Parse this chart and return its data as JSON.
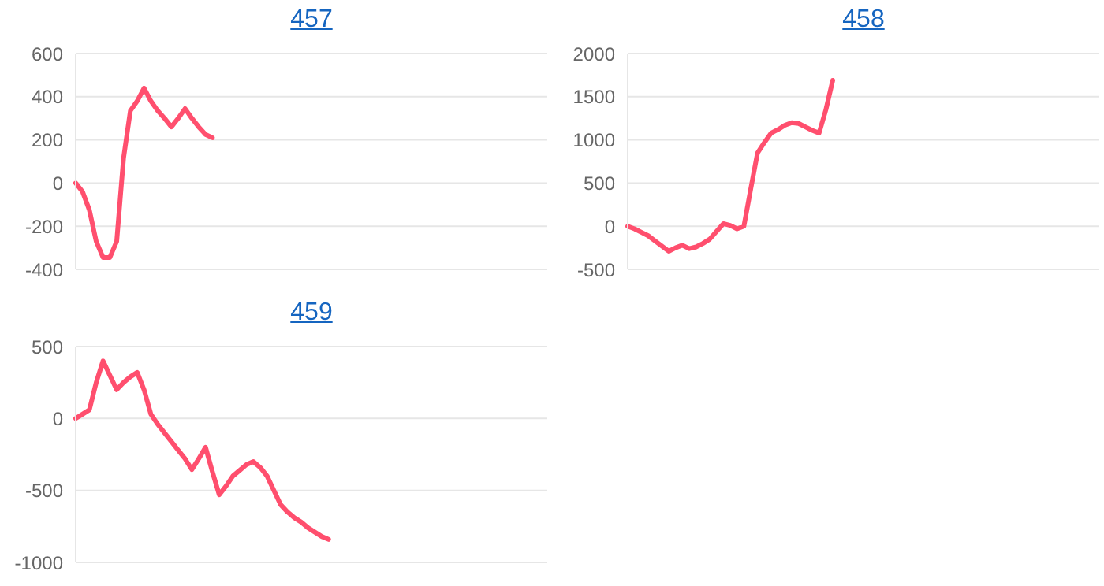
{
  "chart_data": [
    {
      "type": "line",
      "title": "457",
      "categories": [
        null,
        null,
        null,
        null,
        null,
        null,
        null,
        null,
        null,
        null,
        null,
        null,
        null,
        null,
        null,
        null,
        null,
        null,
        null,
        null,
        null,
        null,
        null,
        null,
        null,
        null,
        null,
        null,
        null,
        null,
        null,
        null,
        null,
        null,
        null,
        null,
        null,
        null,
        null,
        null,
        null,
        null,
        null,
        null,
        null,
        null,
        null,
        null,
        null,
        null,
        null,
        null,
        null,
        null,
        null,
        null,
        null,
        null,
        null,
        null,
        null,
        null,
        null,
        null,
        null,
        null,
        null,
        null,
        null,
        null
      ],
      "series": [
        {
          "color": "#ff4f6e",
          "values": [
            0,
            -40,
            -125,
            -270,
            -345,
            -345,
            -270,
            115,
            335,
            380,
            440,
            380,
            335,
            300,
            260,
            300,
            345,
            300,
            260,
            225,
            210,
            null,
            null,
            null,
            null,
            null,
            null,
            null,
            null,
            null,
            null,
            null,
            null,
            null,
            null,
            null,
            null,
            null,
            null,
            null,
            null,
            null,
            null,
            null,
            null,
            null,
            null,
            null,
            null,
            null,
            null,
            null,
            null,
            null,
            null,
            null,
            null,
            null,
            null,
            null,
            null,
            null,
            null,
            null,
            null,
            null,
            null,
            null,
            null,
            null
          ]
        }
      ],
      "ylim": [
        -400,
        600
      ],
      "yticks": [
        -400,
        -200,
        0,
        200,
        400,
        600
      ],
      "grid": "y",
      "tick_labels": "y",
      "marker": "none",
      "line_style": "solid",
      "legend": false
    },
    {
      "type": "line",
      "title": "458",
      "categories": [
        null,
        null,
        null,
        null,
        null,
        null,
        null,
        null,
        null,
        null,
        null,
        null,
        null,
        null,
        null,
        null,
        null,
        null,
        null,
        null,
        null,
        null,
        null,
        null,
        null,
        null,
        null,
        null,
        null,
        null,
        null,
        null,
        null,
        null,
        null,
        null,
        null,
        null,
        null,
        null,
        null,
        null,
        null,
        null,
        null,
        null,
        null,
        null,
        null,
        null,
        null,
        null,
        null,
        null,
        null,
        null,
        null,
        null,
        null,
        null,
        null,
        null,
        null,
        null,
        null,
        null,
        null,
        null,
        null,
        null
      ],
      "series": [
        {
          "color": "#ff4f6e",
          "values": [
            0,
            -30,
            -70,
            -110,
            -170,
            -230,
            -290,
            -250,
            -220,
            -260,
            -240,
            -200,
            -150,
            -60,
            30,
            10,
            -30,
            0,
            430,
            850,
            970,
            1080,
            1120,
            1170,
            1200,
            1190,
            1150,
            1110,
            1080,
            1350,
            1690,
            null,
            null,
            null,
            null,
            null,
            null,
            null,
            null,
            null,
            null,
            null,
            null,
            null,
            null,
            null,
            null,
            null,
            null,
            null,
            null,
            null,
            null,
            null,
            null,
            null,
            null,
            null,
            null,
            null,
            null,
            null,
            null,
            null,
            null,
            null,
            null,
            null,
            null,
            null
          ]
        }
      ],
      "ylim": [
        -500,
        2000
      ],
      "yticks": [
        -500,
        0,
        500,
        1000,
        1500,
        2000
      ],
      "grid": "y",
      "tick_labels": "y",
      "marker": "none",
      "line_style": "solid",
      "legend": false
    },
    {
      "type": "line",
      "title": "459",
      "categories": [
        null,
        null,
        null,
        null,
        null,
        null,
        null,
        null,
        null,
        null,
        null,
        null,
        null,
        null,
        null,
        null,
        null,
        null,
        null,
        null,
        null,
        null,
        null,
        null,
        null,
        null,
        null,
        null,
        null,
        null,
        null,
        null,
        null,
        null,
        null,
        null,
        null,
        null,
        null,
        null,
        null,
        null,
        null,
        null,
        null,
        null,
        null,
        null,
        null,
        null,
        null,
        null,
        null,
        null,
        null,
        null,
        null,
        null,
        null,
        null,
        null,
        null,
        null,
        null,
        null,
        null,
        null,
        null,
        null,
        null
      ],
      "series": [
        {
          "color": "#ff4f6e",
          "values": [
            0,
            30,
            60,
            250,
            400,
            300,
            200,
            250,
            290,
            320,
            200,
            30,
            -40,
            -100,
            -160,
            -220,
            -280,
            -355,
            -280,
            -200,
            -370,
            -530,
            -470,
            -400,
            -360,
            -320,
            -300,
            -340,
            -400,
            -500,
            -600,
            -650,
            -690,
            -720,
            -760,
            -790,
            -820,
            -840,
            null,
            null,
            null,
            null,
            null,
            null,
            null,
            null,
            null,
            null,
            null,
            null,
            null,
            null,
            null,
            null,
            null,
            null,
            null,
            null,
            null,
            null,
            null,
            null,
            null,
            null,
            null,
            null,
            null,
            null,
            null,
            null
          ]
        }
      ],
      "ylim": [
        -1000,
        500
      ],
      "yticks": [
        -1000,
        -500,
        0,
        500
      ],
      "grid": "y",
      "tick_labels": "y",
      "marker": "none",
      "line_style": "solid",
      "legend": false
    }
  ]
}
